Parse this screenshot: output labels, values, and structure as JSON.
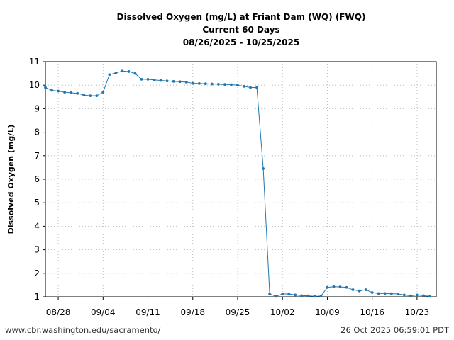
{
  "chart_data": {
    "type": "line",
    "title_lines": [
      "Dissolved Oxygen (mg/L) at Friant Dam (WQ) (FWQ)",
      "Current 60 Days",
      "08/26/2025 - 10/25/2025"
    ],
    "ylabel": "Dissolved Oxygen (mg/L)",
    "xlabel": "",
    "ylim": [
      1,
      11
    ],
    "xlim": [
      "2025-08-26",
      "2025-10-26"
    ],
    "yticks": [
      1,
      2,
      3,
      4,
      5,
      6,
      7,
      8,
      9,
      10,
      11
    ],
    "xticks": [
      {
        "date": "2025-08-28",
        "label": "08/28"
      },
      {
        "date": "2025-09-04",
        "label": "09/04"
      },
      {
        "date": "2025-09-11",
        "label": "09/11"
      },
      {
        "date": "2025-09-18",
        "label": "09/18"
      },
      {
        "date": "2025-09-25",
        "label": "09/25"
      },
      {
        "date": "2025-10-02",
        "label": "10/02"
      },
      {
        "date": "2025-10-09",
        "label": "10/09"
      },
      {
        "date": "2025-10-16",
        "label": "10/16"
      },
      {
        "date": "2025-10-23",
        "label": "10/23"
      }
    ],
    "grid": true,
    "series_color": "#1f77b4",
    "series": [
      {
        "x": [
          "2025-08-26",
          "2025-08-27",
          "2025-08-28",
          "2025-08-29",
          "2025-08-30",
          "2025-08-31",
          "2025-09-01",
          "2025-09-02",
          "2025-09-03",
          "2025-09-04",
          "2025-09-05",
          "2025-09-06",
          "2025-09-07",
          "2025-09-08",
          "2025-09-09",
          "2025-09-10",
          "2025-09-11",
          "2025-09-12",
          "2025-09-13",
          "2025-09-14",
          "2025-09-15",
          "2025-09-16",
          "2025-09-17",
          "2025-09-18",
          "2025-09-19",
          "2025-09-20",
          "2025-09-21",
          "2025-09-22",
          "2025-09-23",
          "2025-09-24",
          "2025-09-25",
          "2025-09-26",
          "2025-09-27",
          "2025-09-28",
          "2025-09-29",
          "2025-09-30",
          "2025-10-01",
          "2025-10-02",
          "2025-10-03",
          "2025-10-04",
          "2025-10-05",
          "2025-10-06",
          "2025-10-07",
          "2025-10-08",
          "2025-10-09",
          "2025-10-10",
          "2025-10-11",
          "2025-10-12",
          "2025-10-13",
          "2025-10-14",
          "2025-10-15",
          "2025-10-16",
          "2025-10-17",
          "2025-10-18",
          "2025-10-19",
          "2025-10-20",
          "2025-10-21",
          "2025-10-22",
          "2025-10-23",
          "2025-10-24",
          "2025-10-25"
        ],
        "y": [
          9.9,
          9.78,
          9.75,
          9.7,
          9.68,
          9.65,
          9.58,
          9.55,
          9.55,
          9.7,
          10.45,
          10.52,
          10.6,
          10.58,
          10.5,
          10.25,
          10.25,
          10.22,
          10.2,
          10.18,
          10.16,
          10.15,
          10.13,
          10.08,
          10.07,
          10.06,
          10.05,
          10.04,
          10.03,
          10.02,
          10.0,
          9.95,
          9.9,
          9.9,
          6.45,
          1.12,
          1.02,
          1.12,
          1.12,
          1.08,
          1.05,
          1.04,
          1.02,
          1.03,
          1.4,
          1.43,
          1.42,
          1.4,
          1.3,
          1.25,
          1.3,
          1.18,
          1.14,
          1.14,
          1.13,
          1.12,
          1.08,
          1.04,
          1.08,
          1.05,
          1.02
        ]
      }
    ]
  },
  "footer": {
    "left": "www.cbr.washington.edu/sacramento/",
    "right": "26 Oct 2025 06:59:01 PDT"
  }
}
